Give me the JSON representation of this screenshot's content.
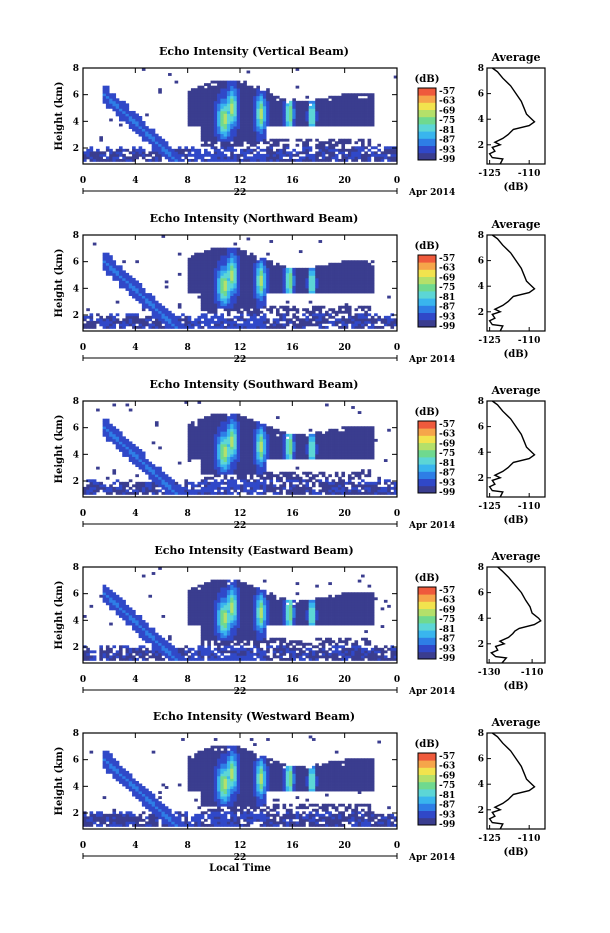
{
  "colors": {
    "scale": [
      "#3a3d8f",
      "#3048c8",
      "#2e7ee6",
      "#39b5ee",
      "#5cd6d6",
      "#6fd98f",
      "#b4e06a",
      "#f2e34e",
      "#f6a54a",
      "#ef5a3c"
    ],
    "background": "#ffffff"
  },
  "chart_data": [
    {
      "type": "heatmap",
      "title": "Echo Intensity (Vertical Beam)",
      "ylabel": "Height (km)",
      "xlim": [
        0,
        24
      ],
      "ylim": [
        0.8,
        8
      ],
      "x_ticks": [
        "0",
        "4",
        "8",
        "12",
        "16",
        "20",
        "0"
      ],
      "y_ticks": [
        "2",
        "4",
        "6",
        "8"
      ],
      "date_label": "22",
      "month_label": "Apr 2014",
      "colorbar": {
        "title": "(dB)",
        "ticks": [
          "-57",
          "-63",
          "-69",
          "-75",
          "-81",
          "-87",
          "-93",
          "-99"
        ]
      },
      "profile": {
        "title": "Average",
        "xlabel": "(dB)",
        "x_ticks": [
          "-125",
          "-110"
        ],
        "y_ticks": [
          "2",
          "4",
          "6",
          "8"
        ],
        "points": [
          [
            -121,
            0.5
          ],
          [
            -120,
            0.9
          ],
          [
            -124,
            1.0
          ],
          [
            -125,
            1.3
          ],
          [
            -123,
            1.5
          ],
          [
            -124,
            1.8
          ],
          [
            -121,
            2.0
          ],
          [
            -123,
            2.2
          ],
          [
            -120,
            2.5
          ],
          [
            -118,
            2.8
          ],
          [
            -117,
            3.0
          ],
          [
            -116,
            3.2
          ],
          [
            -110,
            3.5
          ],
          [
            -108,
            3.8
          ],
          [
            -109,
            4.0
          ],
          [
            -111,
            4.4
          ],
          [
            -112,
            4.9
          ],
          [
            -113,
            5.4
          ],
          [
            -115,
            6.0
          ],
          [
            -117,
            6.6
          ],
          [
            -120,
            7.2
          ],
          [
            -122,
            7.7
          ],
          [
            -124,
            8.0
          ]
        ]
      }
    },
    {
      "type": "heatmap",
      "title": "Echo Intensity (Northward Beam)",
      "ylabel": "Height (km)",
      "xlim": [
        0,
        24
      ],
      "ylim": [
        0.8,
        8
      ],
      "x_ticks": [
        "0",
        "4",
        "8",
        "12",
        "16",
        "20",
        "0"
      ],
      "y_ticks": [
        "2",
        "4",
        "6",
        "8"
      ],
      "date_label": "22",
      "month_label": "Apr 2014",
      "colorbar": {
        "title": "(dB)",
        "ticks": [
          "-57",
          "-63",
          "-69",
          "-75",
          "-81",
          "-87",
          "-93",
          "-99"
        ]
      },
      "profile": {
        "title": "Average",
        "xlabel": "(dB)",
        "x_ticks": [
          "-125",
          "-110"
        ],
        "y_ticks": [
          "2",
          "4",
          "6",
          "8"
        ],
        "points": [
          [
            -121,
            0.5
          ],
          [
            -120,
            0.9
          ],
          [
            -124,
            1.0
          ],
          [
            -125,
            1.3
          ],
          [
            -123,
            1.5
          ],
          [
            -124,
            1.8
          ],
          [
            -121,
            2.0
          ],
          [
            -123,
            2.2
          ],
          [
            -120,
            2.5
          ],
          [
            -118,
            2.8
          ],
          [
            -117,
            3.0
          ],
          [
            -116,
            3.2
          ],
          [
            -110,
            3.5
          ],
          [
            -108,
            3.8
          ],
          [
            -109,
            4.0
          ],
          [
            -111,
            4.4
          ],
          [
            -112,
            4.9
          ],
          [
            -113,
            5.4
          ],
          [
            -115,
            6.0
          ],
          [
            -117,
            6.6
          ],
          [
            -120,
            7.2
          ],
          [
            -122,
            7.7
          ],
          [
            -124,
            8.0
          ]
        ]
      }
    },
    {
      "type": "heatmap",
      "title": "Echo Intensity (Southward Beam)",
      "ylabel": "Height (km)",
      "xlim": [
        0,
        24
      ],
      "ylim": [
        0.8,
        8
      ],
      "x_ticks": [
        "0",
        "4",
        "8",
        "12",
        "16",
        "20",
        "0"
      ],
      "y_ticks": [
        "2",
        "4",
        "6",
        "8"
      ],
      "date_label": "22",
      "month_label": "Apr 2014",
      "colorbar": {
        "title": "(dB)",
        "ticks": [
          "-57",
          "-63",
          "-69",
          "-75",
          "-81",
          "-87",
          "-93",
          "-99"
        ]
      },
      "profile": {
        "title": "Average",
        "xlabel": "(dB)",
        "x_ticks": [
          "-125",
          "-110"
        ],
        "y_ticks": [
          "2",
          "4",
          "6",
          "8"
        ],
        "points": [
          [
            -121,
            0.5
          ],
          [
            -120,
            0.9
          ],
          [
            -124,
            1.0
          ],
          [
            -125,
            1.3
          ],
          [
            -123,
            1.5
          ],
          [
            -124,
            1.8
          ],
          [
            -121,
            2.0
          ],
          [
            -123,
            2.2
          ],
          [
            -120,
            2.5
          ],
          [
            -118,
            2.8
          ],
          [
            -117,
            3.0
          ],
          [
            -116,
            3.2
          ],
          [
            -110,
            3.5
          ],
          [
            -108,
            3.8
          ],
          [
            -109,
            4.0
          ],
          [
            -111,
            4.4
          ],
          [
            -112,
            4.9
          ],
          [
            -113,
            5.4
          ],
          [
            -115,
            6.0
          ],
          [
            -117,
            6.6
          ],
          [
            -120,
            7.2
          ],
          [
            -122,
            7.7
          ],
          [
            -124,
            8.0
          ]
        ]
      }
    },
    {
      "type": "heatmap",
      "title": "Echo Intensity (Eastward Beam)",
      "ylabel": "Height (km)",
      "xlim": [
        0,
        24
      ],
      "ylim": [
        0.8,
        8
      ],
      "x_ticks": [
        "0",
        "4",
        "8",
        "12",
        "16",
        "20",
        "0"
      ],
      "y_ticks": [
        "2",
        "4",
        "6",
        "8"
      ],
      "date_label": "22",
      "month_label": "Apr 2014",
      "colorbar": {
        "title": "(dB)",
        "ticks": [
          "-57",
          "-63",
          "-69",
          "-75",
          "-81",
          "-87",
          "-93",
          "-99"
        ]
      },
      "profile": {
        "title": "Average",
        "xlabel": "(dB)",
        "x_ticks": [
          "-130",
          "-110"
        ],
        "y_ticks": [
          "2",
          "4",
          "6",
          "8"
        ],
        "points": [
          [
            -124,
            0.5
          ],
          [
            -122,
            0.9
          ],
          [
            -127,
            1.0
          ],
          [
            -129,
            1.3
          ],
          [
            -126,
            1.5
          ],
          [
            -127,
            1.8
          ],
          [
            -123,
            2.0
          ],
          [
            -125,
            2.2
          ],
          [
            -121,
            2.5
          ],
          [
            -119,
            2.8
          ],
          [
            -118,
            3.0
          ],
          [
            -116,
            3.2
          ],
          [
            -109,
            3.5
          ],
          [
            -106,
            3.8
          ],
          [
            -107,
            4.0
          ],
          [
            -110,
            4.4
          ],
          [
            -111,
            4.9
          ],
          [
            -113,
            5.4
          ],
          [
            -115,
            6.0
          ],
          [
            -118,
            6.6
          ],
          [
            -121,
            7.2
          ],
          [
            -124,
            7.7
          ],
          [
            -126,
            8.0
          ]
        ]
      }
    },
    {
      "type": "heatmap",
      "title": "Echo Intensity (Westward Beam)",
      "ylabel": "Height (km)",
      "xlim": [
        0,
        24
      ],
      "ylim": [
        0.8,
        8
      ],
      "x_ticks": [
        "0",
        "4",
        "8",
        "12",
        "16",
        "20",
        "0"
      ],
      "y_ticks": [
        "2",
        "4",
        "6",
        "8"
      ],
      "date_label": "22",
      "month_label": "Apr 2014",
      "xlabel": "Local Time",
      "colorbar": {
        "title": "(dB)",
        "ticks": [
          "-57",
          "-63",
          "-69",
          "-75",
          "-81",
          "-87",
          "-93",
          "-99"
        ]
      },
      "profile": {
        "title": "Average",
        "xlabel": "(dB)",
        "x_ticks": [
          "-125",
          "-110"
        ],
        "y_ticks": [
          "2",
          "4",
          "6",
          "8"
        ],
        "points": [
          [
            -121,
            0.5
          ],
          [
            -120,
            0.9
          ],
          [
            -124,
            1.0
          ],
          [
            -125,
            1.3
          ],
          [
            -123,
            1.5
          ],
          [
            -124,
            1.8
          ],
          [
            -121,
            2.0
          ],
          [
            -123,
            2.2
          ],
          [
            -120,
            2.5
          ],
          [
            -118,
            2.8
          ],
          [
            -117,
            3.0
          ],
          [
            -116,
            3.2
          ],
          [
            -110,
            3.5
          ],
          [
            -108,
            3.8
          ],
          [
            -109,
            4.0
          ],
          [
            -111,
            4.4
          ],
          [
            -112,
            4.9
          ],
          [
            -113,
            5.4
          ],
          [
            -115,
            6.0
          ],
          [
            -117,
            6.6
          ],
          [
            -120,
            7.2
          ],
          [
            -122,
            7.7
          ],
          [
            -124,
            8.0
          ]
        ]
      }
    }
  ]
}
